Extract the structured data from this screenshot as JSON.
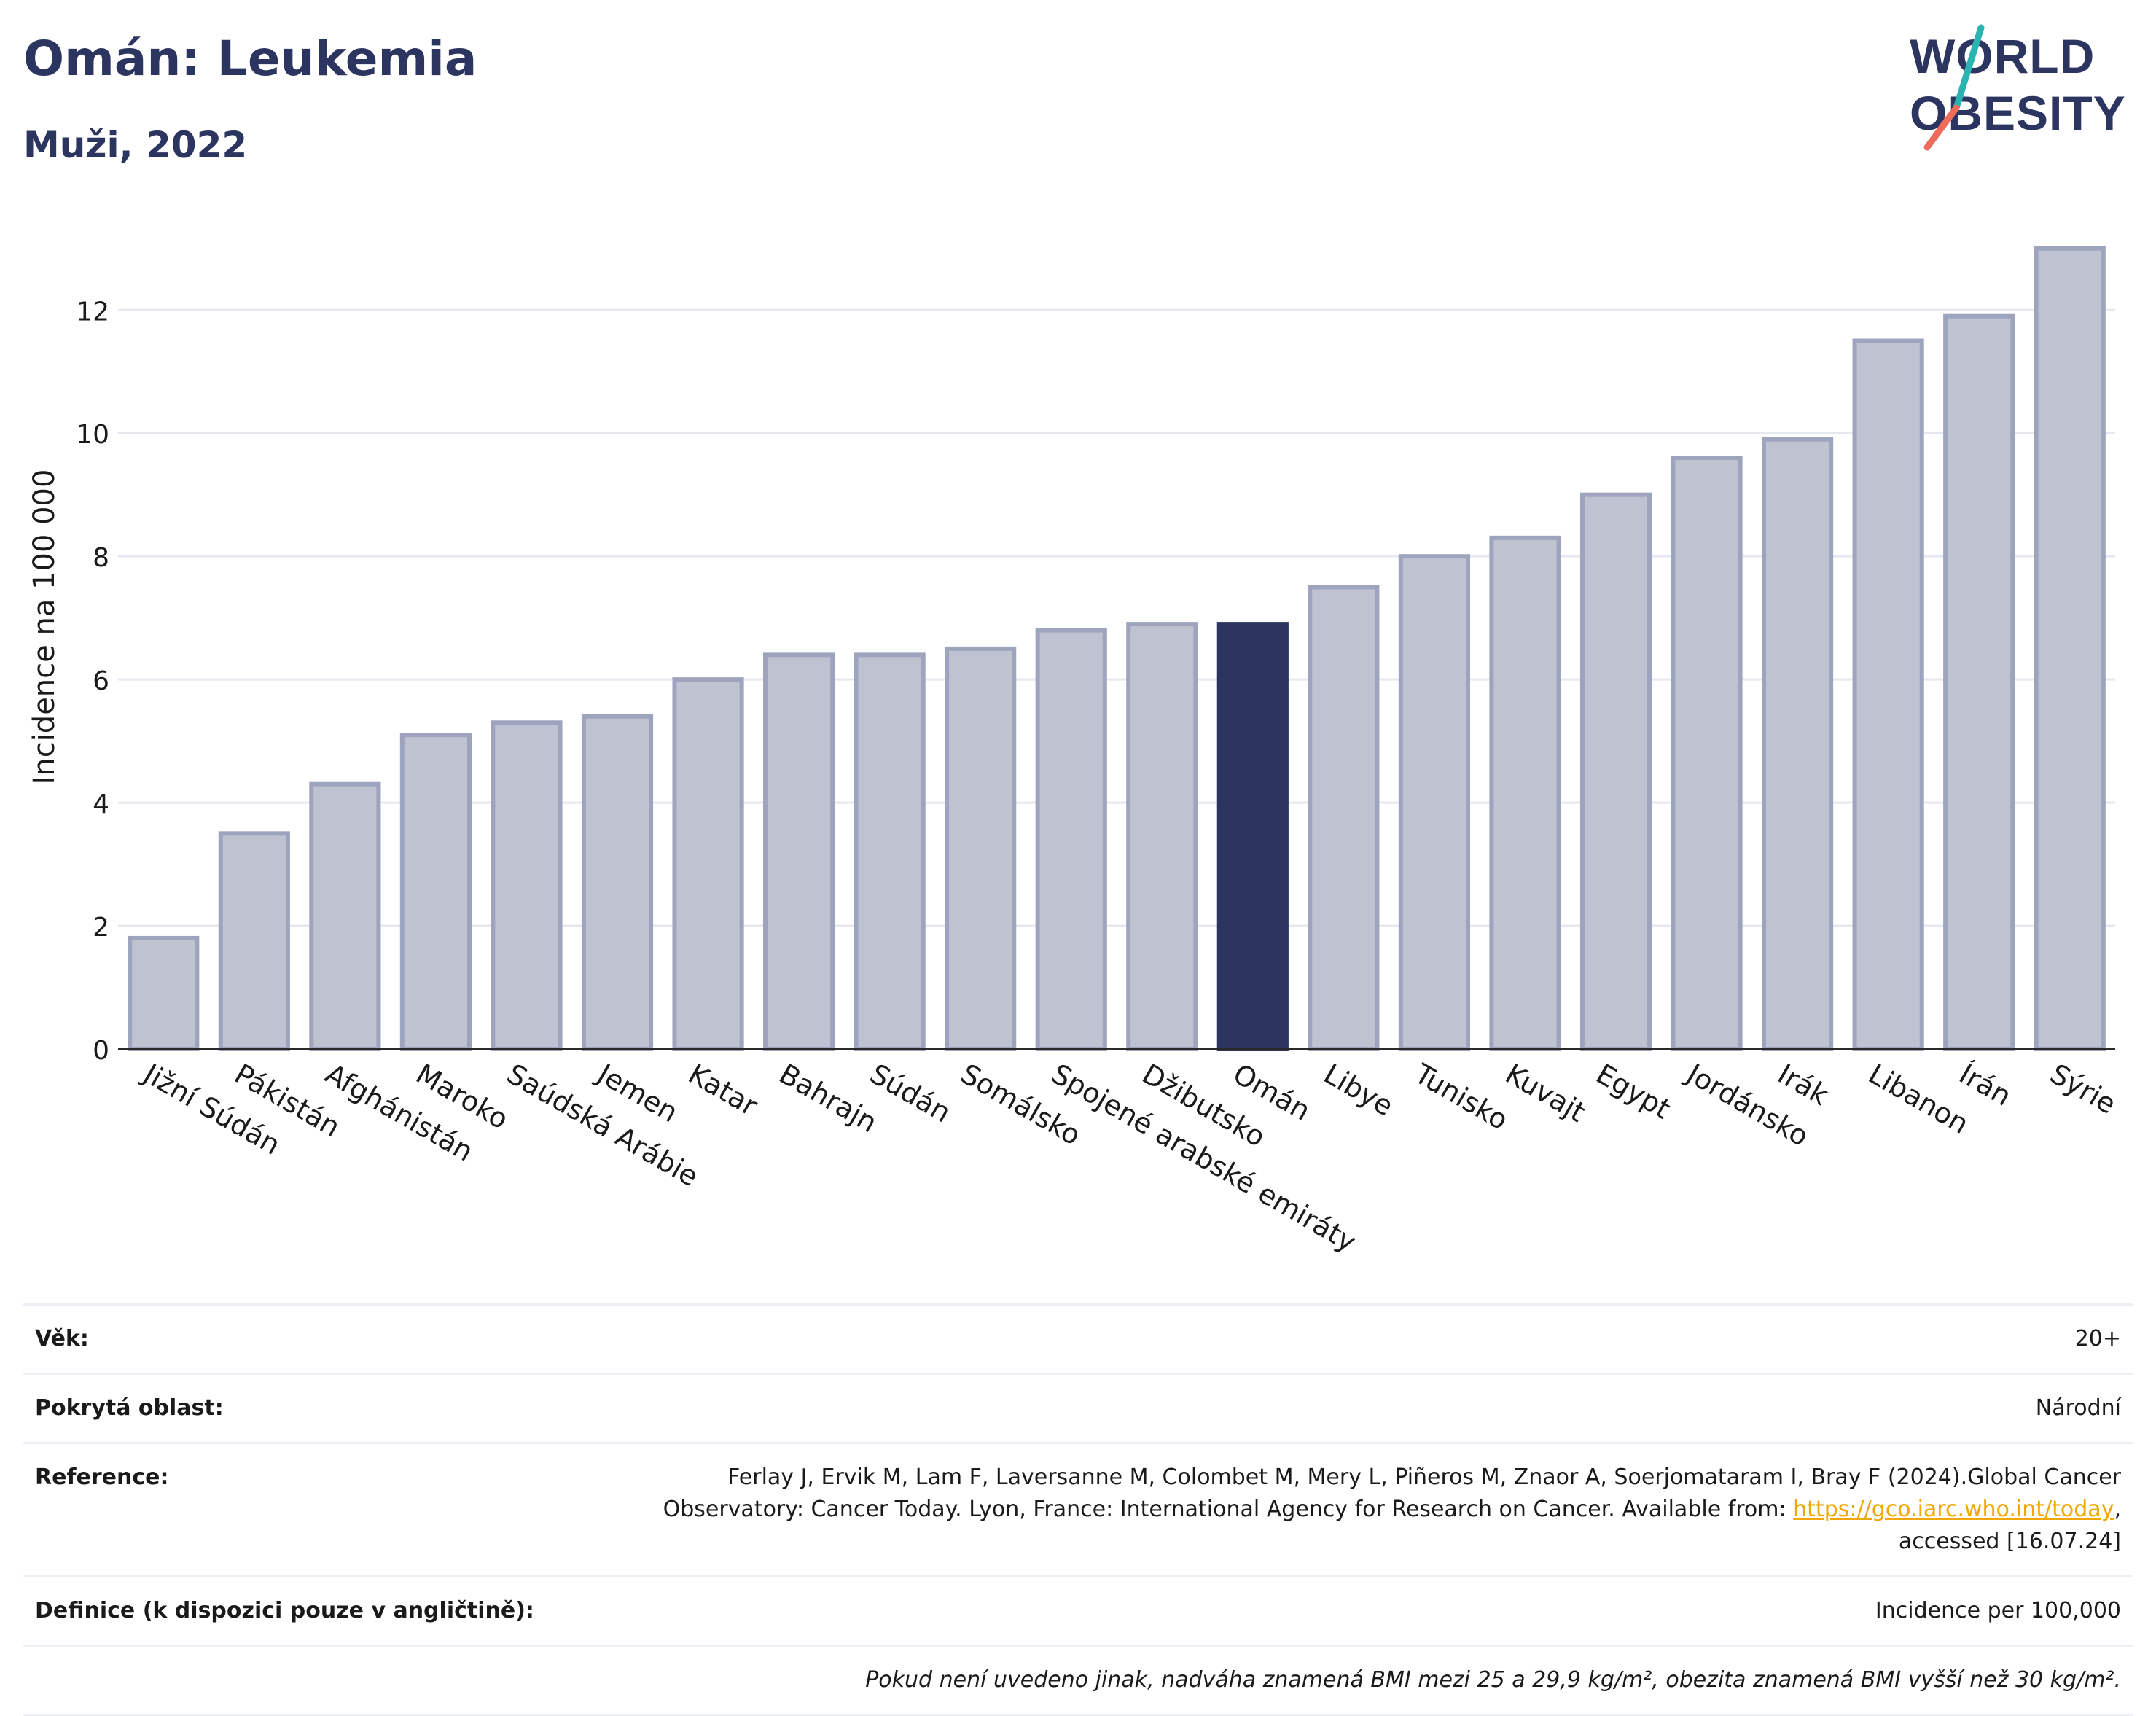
{
  "title": "Omán: Leukemia",
  "subtitle": "Muži, 2022",
  "logo": {
    "line1": "WORLD",
    "line2": "OBESITY"
  },
  "colors": {
    "highlight": "#2b3560",
    "bar": "#bfc3d1",
    "bar_border": "#9ea4bd",
    "grid": "#e6e8ef"
  },
  "chart_data": {
    "type": "bar",
    "ylabel": "Incidence na 100 000",
    "xlabel": "",
    "ylim": [
      0,
      13.4
    ],
    "yticks": [
      0,
      2,
      4,
      6,
      8,
      10,
      12
    ],
    "grid": true,
    "highlight": "Omán",
    "categories": [
      "Jižní Súdán",
      "Pákistán",
      "Afghánistán",
      "Maroko",
      "Saúdská Arábie",
      "Jemen",
      "Katar",
      "Bahrajn",
      "Súdán",
      "Somálsko",
      "Spojené arabské emiráty",
      "Džibutsko",
      "Omán",
      "Libye",
      "Tunisko",
      "Kuvajt",
      "Egypt",
      "Jordánsko",
      "Irák",
      "Libanon",
      "Írán",
      "Sýrie"
    ],
    "values": [
      1.8,
      3.5,
      4.3,
      5.1,
      5.3,
      5.4,
      6.0,
      6.4,
      6.4,
      6.5,
      6.8,
      6.9,
      6.9,
      7.5,
      8.0,
      8.3,
      9.0,
      9.6,
      9.9,
      11.5,
      11.9,
      13.0
    ]
  },
  "info": {
    "age_label": "Věk:",
    "age_value": "20+",
    "area_label": "Pokrytá oblast:",
    "area_value": "Národní",
    "ref_label": "Reference:",
    "ref_text_1": "Ferlay J, Ervik M, Lam F, Laversanne M, Colombet M, Mery L, Piñeros M, Znaor A, Soerjomataram I, Bray F (2024).Global Cancer Observatory: Cancer Today. Lyon, France: International Agency for Research on Cancer. Available from: ",
    "ref_link": "https://gco.iarc.who.int/today",
    "ref_text_2": ", accessed [16.07.24]",
    "def_label": "Definice (k dispozici pouze v angličtině):",
    "def_value": "Incidence per 100,000",
    "note": "Pokud není uvedeno jinak, nadváha znamená BMI mezi 25 a 29,9 kg/m², obezita znamená BMI vyšší než 30 kg/m²."
  }
}
